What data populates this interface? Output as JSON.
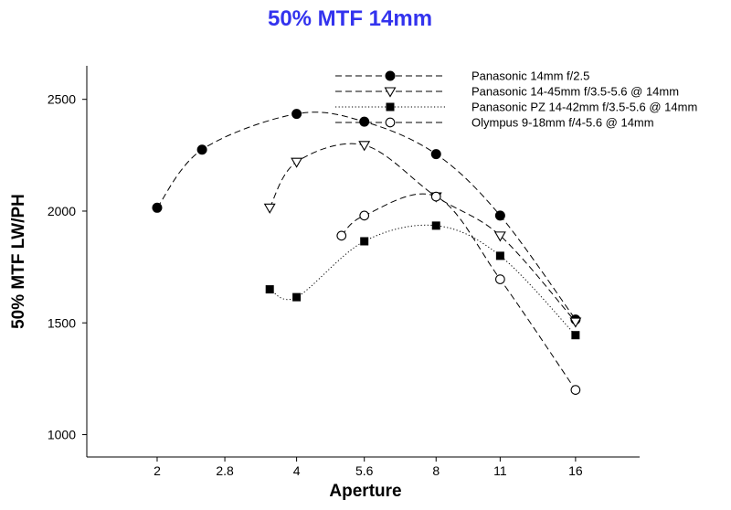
{
  "chart_data": {
    "type": "line",
    "title": "50% MTF 14mm",
    "xlabel": "Aperture",
    "ylabel": "50% MTF LW/PH",
    "x_scale": "log2",
    "xlim": [
      1.41,
      22
    ],
    "ylim": [
      900,
      2650
    ],
    "x_ticks": [
      {
        "value": 2,
        "label": "2"
      },
      {
        "value": 2.8,
        "label": "2.8"
      },
      {
        "value": 4,
        "label": "4"
      },
      {
        "value": 5.6,
        "label": "5.6"
      },
      {
        "value": 8,
        "label": "8"
      },
      {
        "value": 11,
        "label": "11"
      },
      {
        "value": 16,
        "label": "16"
      }
    ],
    "y_ticks": [
      {
        "value": 1000,
        "label": "1000"
      },
      {
        "value": 1500,
        "label": "1500"
      },
      {
        "value": 2000,
        "label": "2000"
      },
      {
        "value": 2500,
        "label": "2500"
      }
    ],
    "grid": false,
    "legend_position": "top-right",
    "colors": {
      "title": "#3333ee",
      "series": "#000000"
    },
    "series": [
      {
        "name": "Panasonic 14mm f/2.5",
        "marker": "filled-circle",
        "line": "dashed",
        "x": [
          2,
          2.5,
          4,
          5.6,
          8,
          11,
          16
        ],
        "y": [
          2015,
          2275,
          2435,
          2400,
          2255,
          1980,
          1515
        ]
      },
      {
        "name": "Panasonic 14-45mm f/3.5-5.6 @ 14mm",
        "marker": "open-triangle-down",
        "line": "dashed",
        "x": [
          3.5,
          4,
          5.6,
          8,
          11,
          16
        ],
        "y": [
          2015,
          2220,
          2295,
          2065,
          1890,
          1505
        ]
      },
      {
        "name": "Panasonic PZ 14-42mm f/3.5-5.6 @ 14mm",
        "marker": "filled-square",
        "line": "dotted",
        "x": [
          3.5,
          4,
          5.6,
          8,
          11,
          16
        ],
        "y": [
          1650,
          1615,
          1865,
          1935,
          1800,
          1445
        ]
      },
      {
        "name": "Olympus 9-18mm f/4-5.6 @ 14mm",
        "marker": "open-circle",
        "line": "dashed",
        "x": [
          5,
          5.6,
          8,
          11,
          16
        ],
        "y": [
          1890,
          1980,
          2065,
          1695,
          1200
        ]
      }
    ]
  }
}
